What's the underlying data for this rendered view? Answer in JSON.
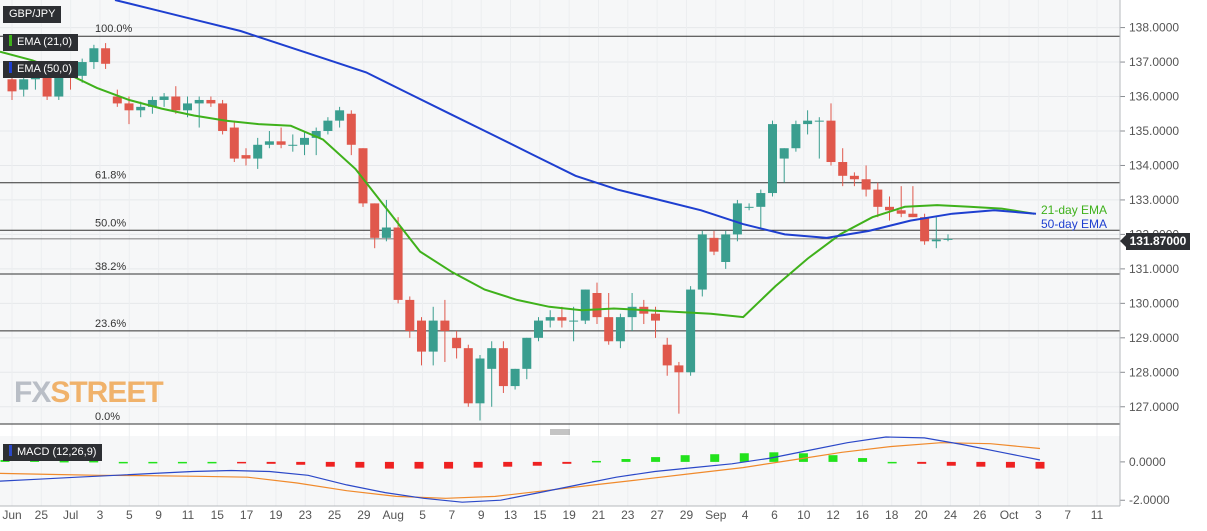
{
  "symbol": "GBP/JPY",
  "last_price": "131.87000",
  "watermark": {
    "part1": "FX",
    "part2": "STREET"
  },
  "indicators": {
    "ema21_label": "EMA (21,0)",
    "ema50_label": "EMA (50,0)",
    "macd_label": "MACD (12,26,9)"
  },
  "annotations": {
    "ema21": "21-day EMA",
    "ema50": "50-day EMA"
  },
  "colors": {
    "up": "#3a9e8f",
    "down": "#e0584c",
    "ema21": "#3fb11b",
    "ema50": "#1e3fd0",
    "macd_line": "#2b48c8",
    "signal_line": "#f08a2c",
    "hist_up": "#22e21c",
    "hist_down": "#ee2121"
  },
  "chart_data": [
    {
      "type": "candlestick",
      "title": "GBP/JPY",
      "x_ticks": [
        "Jun",
        "25",
        "Jul",
        "3",
        "5",
        "9",
        "11",
        "15",
        "17",
        "19",
        "23",
        "25",
        "29",
        "Aug",
        "5",
        "7",
        "9",
        "13",
        "15",
        "19",
        "21",
        "23",
        "27",
        "29",
        "Sep",
        "4",
        "6",
        "10",
        "12",
        "16",
        "18",
        "20",
        "24",
        "26",
        "Oct",
        "3",
        "7",
        "11"
      ],
      "y_ticks": [
        "127.0000",
        "128.0000",
        "129.0000",
        "130.0000",
        "131.0000",
        "132.0000",
        "133.0000",
        "134.0000",
        "135.0000",
        "136.0000",
        "137.0000",
        "138.0000"
      ],
      "ylim": [
        126.5,
        138.8
      ],
      "candles": [
        {
          "o": 136.5,
          "h": 136.85,
          "l": 135.9,
          "c": 136.15
        },
        {
          "o": 136.2,
          "h": 136.7,
          "l": 136.0,
          "c": 136.5
        },
        {
          "o": 136.5,
          "h": 136.9,
          "l": 136.2,
          "c": 136.7
        },
        {
          "o": 136.7,
          "h": 136.8,
          "l": 135.9,
          "c": 136.0
        },
        {
          "o": 136.0,
          "h": 136.9,
          "l": 135.9,
          "c": 136.8
        },
        {
          "o": 136.7,
          "h": 136.95,
          "l": 136.2,
          "c": 136.6
        },
        {
          "o": 136.6,
          "h": 137.1,
          "l": 136.4,
          "c": 137.0
        },
        {
          "o": 137.0,
          "h": 137.5,
          "l": 136.8,
          "c": 137.4
        },
        {
          "o": 137.4,
          "h": 137.55,
          "l": 136.8,
          "c": 136.95
        },
        {
          "o": 136.0,
          "h": 136.2,
          "l": 135.7,
          "c": 135.8
        },
        {
          "o": 135.8,
          "h": 136.0,
          "l": 135.2,
          "c": 135.6
        },
        {
          "o": 135.6,
          "h": 135.85,
          "l": 135.4,
          "c": 135.7
        },
        {
          "o": 135.7,
          "h": 136.0,
          "l": 135.5,
          "c": 135.9
        },
        {
          "o": 135.9,
          "h": 136.1,
          "l": 135.7,
          "c": 136.0
        },
        {
          "o": 136.0,
          "h": 136.3,
          "l": 135.5,
          "c": 135.6
        },
        {
          "o": 135.6,
          "h": 136.0,
          "l": 135.4,
          "c": 135.8
        },
        {
          "o": 135.8,
          "h": 136.0,
          "l": 135.1,
          "c": 135.9
        },
        {
          "o": 135.9,
          "h": 136.0,
          "l": 135.7,
          "c": 135.8
        },
        {
          "o": 135.8,
          "h": 135.9,
          "l": 134.9,
          "c": 135.0
        },
        {
          "o": 135.1,
          "h": 135.3,
          "l": 134.1,
          "c": 134.2
        },
        {
          "o": 134.3,
          "h": 134.5,
          "l": 134.0,
          "c": 134.2
        },
        {
          "o": 134.2,
          "h": 134.8,
          "l": 133.9,
          "c": 134.6
        },
        {
          "o": 134.6,
          "h": 135.0,
          "l": 134.5,
          "c": 134.7
        },
        {
          "o": 134.7,
          "h": 135.1,
          "l": 134.5,
          "c": 134.6
        },
        {
          "o": 134.6,
          "h": 134.9,
          "l": 134.4,
          "c": 134.6
        },
        {
          "o": 134.6,
          "h": 135.0,
          "l": 134.3,
          "c": 134.8
        },
        {
          "o": 134.8,
          "h": 135.1,
          "l": 134.3,
          "c": 135.0
        },
        {
          "o": 135.0,
          "h": 135.4,
          "l": 134.9,
          "c": 135.3
        },
        {
          "o": 135.3,
          "h": 135.7,
          "l": 135.1,
          "c": 135.6
        },
        {
          "o": 135.5,
          "h": 135.6,
          "l": 134.3,
          "c": 134.6
        },
        {
          "o": 134.5,
          "h": 134.5,
          "l": 132.8,
          "c": 132.9
        },
        {
          "o": 132.9,
          "h": 132.9,
          "l": 131.6,
          "c": 131.9
        },
        {
          "o": 131.9,
          "h": 133.0,
          "l": 131.8,
          "c": 132.2
        },
        {
          "o": 132.2,
          "h": 132.5,
          "l": 130.0,
          "c": 130.1
        },
        {
          "o": 130.1,
          "h": 130.2,
          "l": 129.0,
          "c": 129.2
        },
        {
          "o": 129.5,
          "h": 129.6,
          "l": 128.2,
          "c": 128.6
        },
        {
          "o": 128.6,
          "h": 129.9,
          "l": 128.2,
          "c": 129.5
        },
        {
          "o": 129.5,
          "h": 130.1,
          "l": 128.3,
          "c": 129.2
        },
        {
          "o": 129.0,
          "h": 129.2,
          "l": 128.4,
          "c": 128.7
        },
        {
          "o": 128.7,
          "h": 128.8,
          "l": 127.0,
          "c": 127.1
        },
        {
          "o": 127.1,
          "h": 128.5,
          "l": 126.6,
          "c": 128.4
        },
        {
          "o": 128.1,
          "h": 128.9,
          "l": 127.0,
          "c": 128.7
        },
        {
          "o": 128.7,
          "h": 128.9,
          "l": 127.4,
          "c": 127.6
        },
        {
          "o": 127.6,
          "h": 128.1,
          "l": 127.5,
          "c": 128.1
        },
        {
          "o": 128.1,
          "h": 129.0,
          "l": 127.8,
          "c": 129.0
        },
        {
          "o": 129.0,
          "h": 129.6,
          "l": 128.9,
          "c": 129.5
        },
        {
          "o": 129.5,
          "h": 129.8,
          "l": 129.3,
          "c": 129.6
        },
        {
          "o": 129.6,
          "h": 129.9,
          "l": 129.3,
          "c": 129.5
        },
        {
          "o": 129.5,
          "h": 129.9,
          "l": 128.9,
          "c": 129.5
        },
        {
          "o": 129.5,
          "h": 130.4,
          "l": 129.4,
          "c": 130.4
        },
        {
          "o": 130.3,
          "h": 130.6,
          "l": 129.4,
          "c": 129.6
        },
        {
          "o": 129.6,
          "h": 130.3,
          "l": 128.8,
          "c": 128.9
        },
        {
          "o": 128.9,
          "h": 129.7,
          "l": 128.7,
          "c": 129.6
        },
        {
          "o": 129.6,
          "h": 130.3,
          "l": 129.2,
          "c": 129.9
        },
        {
          "o": 129.9,
          "h": 130.1,
          "l": 129.4,
          "c": 129.7
        },
        {
          "o": 129.7,
          "h": 129.9,
          "l": 129.0,
          "c": 129.5
        },
        {
          "o": 128.8,
          "h": 129.0,
          "l": 127.9,
          "c": 128.2
        },
        {
          "o": 128.2,
          "h": 128.3,
          "l": 126.8,
          "c": 128.0
        },
        {
          "o": 128.0,
          "h": 130.5,
          "l": 127.9,
          "c": 130.4
        },
        {
          "o": 130.4,
          "h": 132.1,
          "l": 130.2,
          "c": 132.0
        },
        {
          "o": 131.9,
          "h": 132.1,
          "l": 131.4,
          "c": 131.5
        },
        {
          "o": 131.2,
          "h": 132.1,
          "l": 131.0,
          "c": 132.0
        },
        {
          "o": 132.0,
          "h": 133.0,
          "l": 131.8,
          "c": 132.9
        },
        {
          "o": 132.8,
          "h": 132.9,
          "l": 132.7,
          "c": 132.8
        },
        {
          "o": 132.8,
          "h": 133.3,
          "l": 132.2,
          "c": 133.2
        },
        {
          "o": 133.2,
          "h": 135.3,
          "l": 133.1,
          "c": 135.2
        },
        {
          "o": 134.2,
          "h": 134.5,
          "l": 133.5,
          "c": 134.5
        },
        {
          "o": 134.5,
          "h": 135.3,
          "l": 134.4,
          "c": 135.2
        },
        {
          "o": 135.2,
          "h": 135.6,
          "l": 134.9,
          "c": 135.3
        },
        {
          "o": 135.3,
          "h": 135.4,
          "l": 134.2,
          "c": 135.3
        },
        {
          "o": 135.3,
          "h": 135.8,
          "l": 134.0,
          "c": 134.1
        },
        {
          "o": 134.1,
          "h": 134.5,
          "l": 133.4,
          "c": 133.7
        },
        {
          "o": 133.7,
          "h": 133.8,
          "l": 133.4,
          "c": 133.6
        },
        {
          "o": 133.6,
          "h": 134.0,
          "l": 133.1,
          "c": 133.3
        },
        {
          "o": 133.3,
          "h": 133.5,
          "l": 132.5,
          "c": 132.8
        },
        {
          "o": 132.8,
          "h": 133.1,
          "l": 132.4,
          "c": 132.7
        },
        {
          "o": 132.7,
          "h": 133.4,
          "l": 132.5,
          "c": 132.6
        },
        {
          "o": 132.6,
          "h": 133.4,
          "l": 132.5,
          "c": 132.5
        },
        {
          "o": 132.5,
          "h": 132.6,
          "l": 131.7,
          "c": 131.8
        },
        {
          "o": 131.8,
          "h": 132.5,
          "l": 131.6,
          "c": 131.85
        },
        {
          "o": 131.85,
          "h": 132.0,
          "l": 131.8,
          "c": 131.87
        }
      ],
      "ema21": [
        137.3,
        137.05,
        136.7,
        136.25,
        135.9,
        135.65,
        135.45,
        135.3,
        135.2,
        135.15,
        134.75,
        133.9,
        132.7,
        131.5,
        130.9,
        130.4,
        130.1,
        129.9,
        129.8,
        129.85,
        129.8,
        129.75,
        129.7,
        129.6,
        130.5,
        131.3,
        132.0,
        132.5,
        132.8,
        132.85,
        132.8,
        132.75,
        132.6
      ],
      "ema50": [
        138.8,
        138.5,
        138.2,
        137.9,
        137.5,
        137.1,
        136.7,
        136.1,
        135.5,
        134.9,
        134.3,
        133.7,
        133.3,
        133.0,
        132.7,
        132.3,
        132.0,
        131.9,
        132.1,
        132.4,
        132.6,
        132.7,
        132.6
      ],
      "fib_levels": [
        {
          "label": "100.0%",
          "price": 137.75
        },
        {
          "label": "61.8%",
          "price": 133.5
        },
        {
          "label": "50.0%",
          "price": 132.12
        },
        {
          "label": "38.2%",
          "price": 130.85
        },
        {
          "label": "23.6%",
          "price": 129.2
        },
        {
          "label": "0.0%",
          "price": 126.5
        }
      ],
      "last_price": 131.87
    },
    {
      "type": "macd",
      "title": "MACD (12,26,9)",
      "y_ticks": [
        "0.0000",
        "-2.0000"
      ],
      "ylim": [
        -2.3,
        1.35
      ],
      "histogram": [
        0.1,
        0.1,
        0.05,
        0.05,
        0,
        0,
        0,
        0,
        -0.05,
        -0.1,
        -0.15,
        -0.25,
        -0.3,
        -0.35,
        -0.35,
        -0.35,
        -0.3,
        -0.25,
        -0.2,
        -0.1,
        0.05,
        0.15,
        0.25,
        0.35,
        0.4,
        0.45,
        0.5,
        0.45,
        0.35,
        0.2,
        0,
        -0.1,
        -0.2,
        -0.25,
        -0.3,
        -0.35
      ],
      "macd_line": [
        -1.0,
        -0.9,
        -0.8,
        -0.7,
        -0.6,
        -0.5,
        -0.45,
        -0.5,
        -0.7,
        -1.2,
        -1.6,
        -1.9,
        -2.1,
        -2.0,
        -1.6,
        -1.2,
        -0.8,
        -0.5,
        -0.3,
        -0.1,
        0.2,
        0.6,
        1.0,
        1.3,
        1.25,
        0.9,
        0.5,
        0.1
      ],
      "signal_line": [
        -0.6,
        -0.65,
        -0.7,
        -0.72,
        -0.75,
        -0.8,
        -1.1,
        -1.5,
        -1.8,
        -1.9,
        -1.8,
        -1.5,
        -1.2,
        -0.9,
        -0.6,
        -0.3,
        0.1,
        0.5,
        0.8,
        1.0,
        0.95,
        0.7
      ]
    }
  ]
}
